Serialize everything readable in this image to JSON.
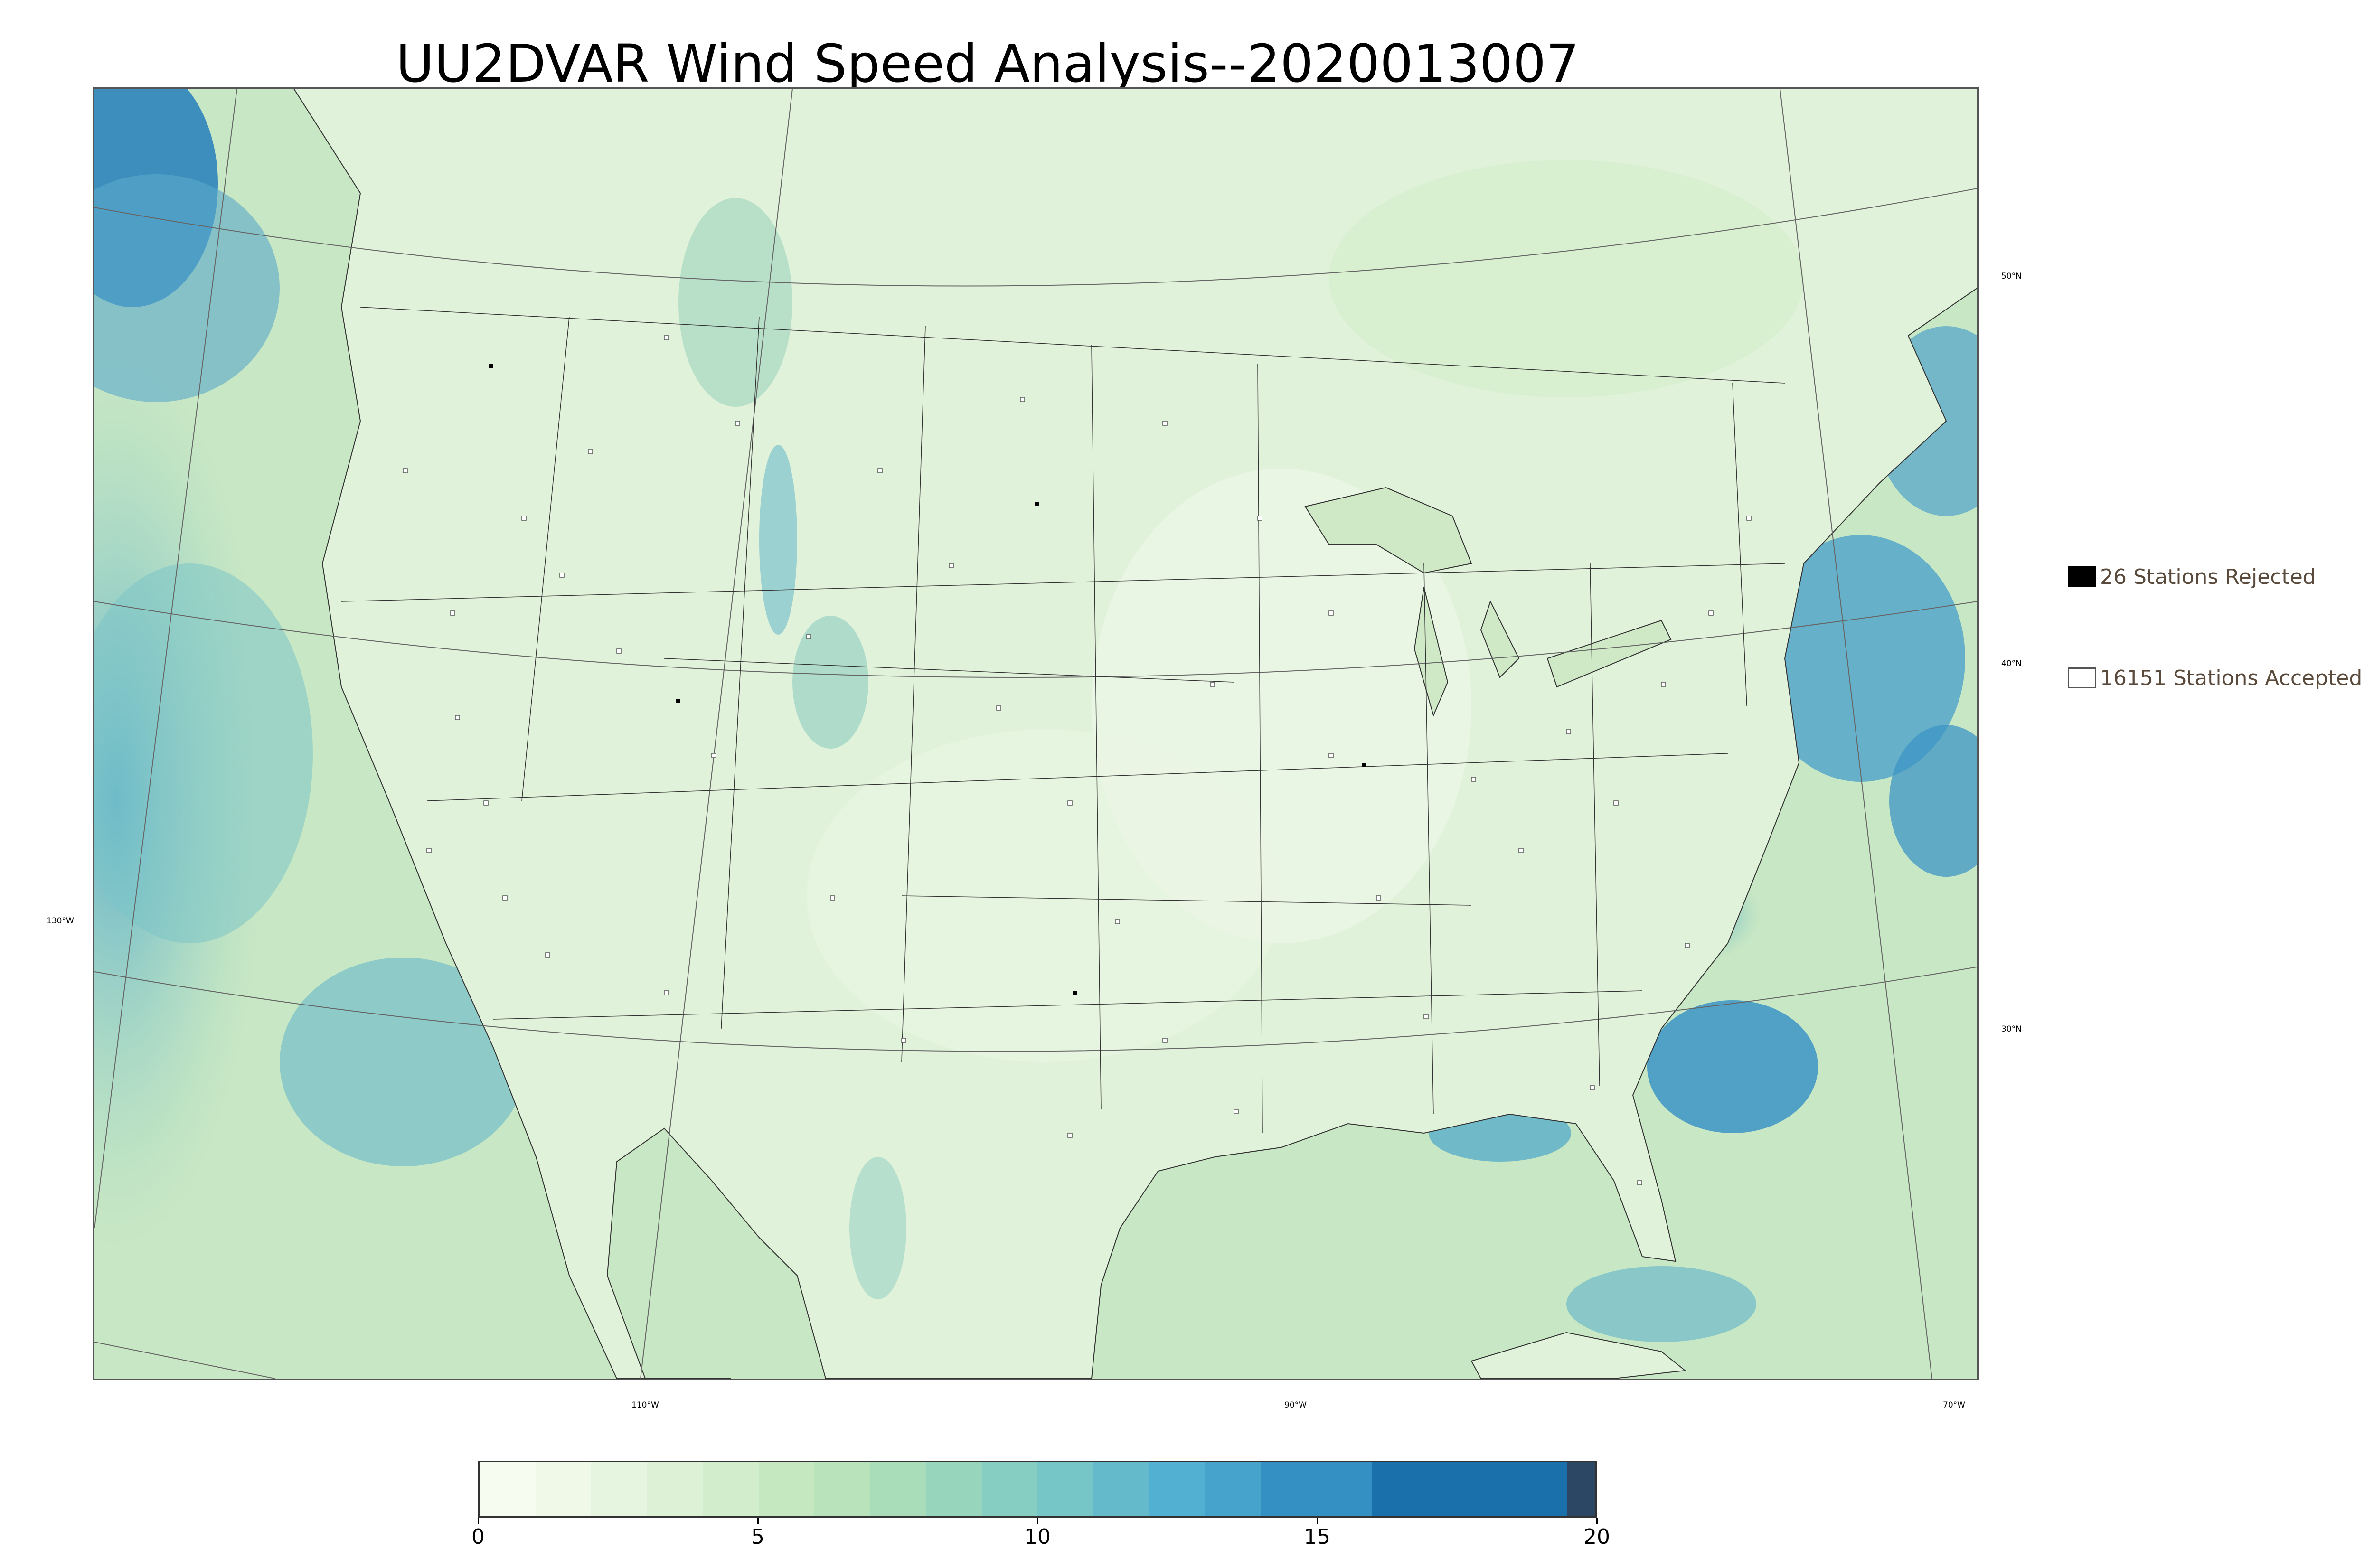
{
  "title": "UU2DVAR Wind Speed Analysis--2020013007",
  "map": {
    "lon_labels": [
      "130°W",
      "110°W",
      "90°W",
      "70°W"
    ],
    "lat_labels": [
      "50°N",
      "40°N",
      "30°N"
    ],
    "colors": {
      "ocean_calm": "#cde9c8",
      "ocean_strong": "#3a92c4",
      "land": "#e3f3dc",
      "boundary": "#333333",
      "station_fill": "#ffffff",
      "station_edge": "#555555"
    }
  },
  "legend": {
    "rejected_label": "26 Stations Rejected",
    "accepted_label": "16151 Stations Accepted",
    "rejected_color": "#000000",
    "accepted_color": "#ffffff"
  },
  "colorbar": {
    "min": 0,
    "max": 20,
    "tick_labels": [
      "0",
      "5",
      "10",
      "15",
      "20"
    ],
    "tick_values": [
      0,
      5,
      10,
      15,
      20
    ],
    "bands": [
      {
        "from": 0,
        "to": 1,
        "color": "#f7fcf0"
      },
      {
        "from": 1,
        "to": 2,
        "color": "#f0f9e8"
      },
      {
        "from": 2,
        "to": 3,
        "color": "#e6f5df"
      },
      {
        "from": 3,
        "to": 4,
        "color": "#dcf1d6"
      },
      {
        "from": 4,
        "to": 5,
        "color": "#d2edcc"
      },
      {
        "from": 5,
        "to": 6,
        "color": "#c6e8c1"
      },
      {
        "from": 6,
        "to": 7,
        "color": "#b8e3bb"
      },
      {
        "from": 7,
        "to": 8,
        "color": "#a9dcb8"
      },
      {
        "from": 8,
        "to": 9,
        "color": "#98d5bd"
      },
      {
        "from": 9,
        "to": 10,
        "color": "#87cec2"
      },
      {
        "from": 10,
        "to": 11,
        "color": "#76c5c7"
      },
      {
        "from": 11,
        "to": 12,
        "color": "#64bacb"
      },
      {
        "from": 12,
        "to": 13,
        "color": "#52b0d2"
      },
      {
        "from": 13,
        "to": 14,
        "color": "#46a3cc"
      },
      {
        "from": 14,
        "to": 16,
        "color": "#3490c2"
      },
      {
        "from": 16,
        "to": 19.5,
        "color": "#1a70ab"
      },
      {
        "from": 19.5,
        "to": 20,
        "color": "#2c4763"
      }
    ]
  }
}
